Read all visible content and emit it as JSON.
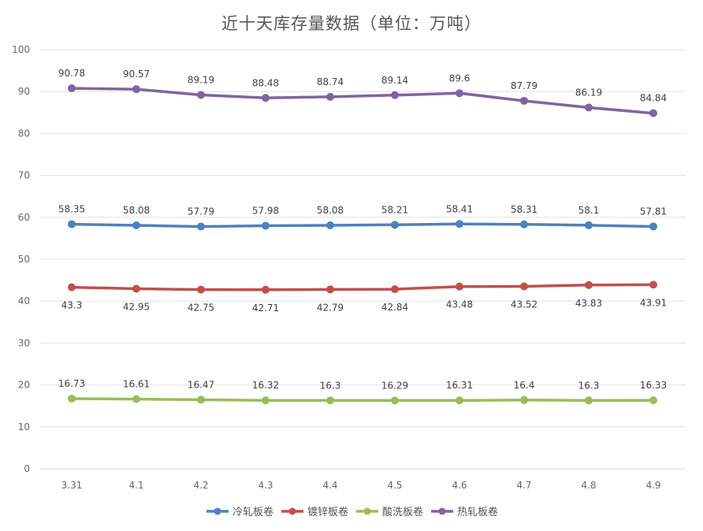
{
  "chart_data": {
    "type": "line",
    "title": "近十天库存量数据（单位：万吨）",
    "categories": [
      "3.31",
      "4.1",
      "4.2",
      "4.3",
      "4.4",
      "4.5",
      "4.6",
      "4.7",
      "4.8",
      "4.9"
    ],
    "ylim": [
      0,
      100
    ],
    "yticks": [
      0,
      10,
      20,
      30,
      40,
      50,
      60,
      70,
      80,
      90,
      100
    ],
    "grid": true,
    "legend_position": "bottom",
    "series": [
      {
        "name": "冷轧板卷",
        "color": "#4f81bd",
        "label_position": "above",
        "values": [
          58.35,
          58.08,
          57.79,
          57.98,
          58.08,
          58.21,
          58.41,
          58.31,
          58.1,
          57.81
        ]
      },
      {
        "name": "镀锌板卷",
        "color": "#c0504d",
        "label_position": "below",
        "values": [
          43.3,
          42.95,
          42.75,
          42.71,
          42.79,
          42.84,
          43.48,
          43.52,
          43.83,
          43.91
        ]
      },
      {
        "name": "酸洗板卷",
        "color": "#9bbb59",
        "label_position": "above",
        "values": [
          16.73,
          16.61,
          16.47,
          16.32,
          16.3,
          16.29,
          16.31,
          16.4,
          16.3,
          16.33
        ]
      },
      {
        "name": "热轧板卷",
        "color": "#8064a2",
        "label_position": "above",
        "values": [
          90.78,
          90.57,
          89.19,
          88.48,
          88.74,
          89.14,
          89.6,
          87.79,
          86.19,
          84.84
        ]
      }
    ]
  }
}
